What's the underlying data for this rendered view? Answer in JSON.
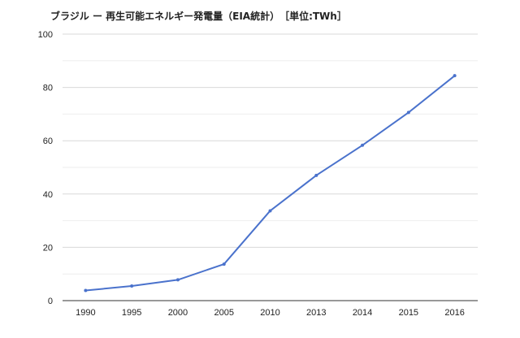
{
  "chart_data": {
    "type": "line",
    "title": "ブラジル ー 再生可能エネルギー発電量（EIA統計）　［単位:TWh］",
    "xlabel": "",
    "ylabel": "",
    "categories": [
      "1990",
      "1995",
      "2000",
      "2005",
      "2010",
      "2013",
      "2014",
      "2015",
      "2016"
    ],
    "series": [
      {
        "values": [
          3.8,
          5.5,
          7.8,
          13.7,
          33.7,
          47.0,
          58.3,
          70.6,
          84.4
        ]
      }
    ],
    "ylim": [
      0,
      100
    ],
    "yticks": [
      0,
      20,
      40,
      60,
      80,
      100
    ],
    "grid": true,
    "legend": "none",
    "colors": {
      "line": "#4a72cc",
      "grid_major": "#d9d9d9",
      "grid_minor": "#eeeeee",
      "axis": "#333333",
      "text": "#222222"
    }
  }
}
